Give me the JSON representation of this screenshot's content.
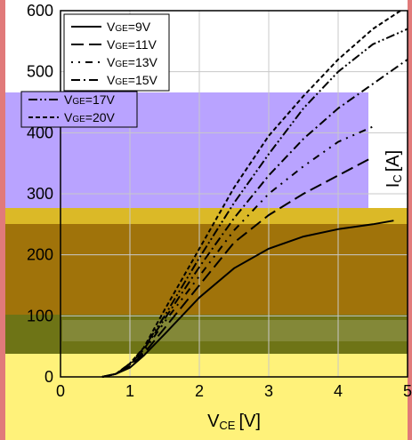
{
  "chart_data": {
    "type": "line",
    "xlabel": "VCE [V]",
    "ylabel": "IC [A]",
    "xlim": [
      0,
      5
    ],
    "ylim": [
      0,
      600
    ],
    "x_ticks": [
      "0",
      "1",
      "2",
      "3",
      "4",
      "5"
    ],
    "y_ticks": [
      "0",
      "100",
      "200",
      "300",
      "400",
      "500",
      "600"
    ],
    "grid": true,
    "legend_position": "top-left",
    "series": [
      {
        "name": "VGE=9V",
        "style": "solid",
        "x": [
          0.6,
          0.8,
          1.0,
          1.2,
          1.5,
          2.0,
          2.5,
          3.0,
          3.5,
          4.0,
          4.5,
          4.8
        ],
        "y": [
          0,
          5,
          15,
          35,
          70,
          130,
          178,
          210,
          230,
          242,
          250,
          256
        ]
      },
      {
        "name": "VGE=11V",
        "style": "long-dash",
        "x": [
          0.6,
          0.8,
          1.0,
          1.2,
          1.5,
          2.0,
          2.5,
          3.0,
          3.5,
          4.0,
          4.5
        ],
        "y": [
          0,
          5,
          18,
          38,
          80,
          150,
          220,
          265,
          300,
          330,
          360
        ]
      },
      {
        "name": "VGE=13V",
        "style": "dot-dash-sparse",
        "x": [
          0.6,
          0.8,
          1.0,
          1.2,
          1.5,
          2.0,
          2.5,
          3.0,
          3.5,
          4.0,
          4.5
        ],
        "y": [
          0,
          5,
          20,
          42,
          90,
          165,
          240,
          300,
          345,
          385,
          410
        ]
      },
      {
        "name": "VGE=15V",
        "style": "dash-dot",
        "x": [
          0.6,
          0.8,
          1.0,
          1.2,
          1.5,
          2.0,
          2.5,
          3.0,
          3.5,
          4.0,
          4.5,
          5.0
        ],
        "y": [
          0,
          5,
          20,
          45,
          95,
          180,
          260,
          330,
          390,
          440,
          480,
          520
        ]
      },
      {
        "name": "VGE=17V",
        "style": "dash-dot-dot",
        "x": [
          0.6,
          0.8,
          1.0,
          1.2,
          1.5,
          2.0,
          2.5,
          3.0,
          3.5,
          4.0,
          4.5,
          5.0
        ],
        "y": [
          0,
          5,
          22,
          47,
          100,
          195,
          285,
          365,
          440,
          500,
          545,
          570
        ]
      },
      {
        "name": "VGE=20V",
        "style": "short-dash",
        "x": [
          0.6,
          0.8,
          1.0,
          1.2,
          1.5,
          2.0,
          2.5,
          3.0,
          3.5,
          4.0,
          4.5,
          4.9
        ],
        "y": [
          0,
          5,
          22,
          48,
          110,
          210,
          310,
          395,
          460,
          520,
          570,
          600
        ]
      }
    ]
  },
  "colors": {
    "plot_bg": "#ffffff",
    "band_purple": "#b9a3ff",
    "band_gold": "#dbb927",
    "band_brown": "#a0730a",
    "band_olive": "#6e7416",
    "band_yellow": "#fff27a",
    "border_salmon": "#e17a7a",
    "line": "#000000",
    "grid": "#c8c8c8"
  }
}
